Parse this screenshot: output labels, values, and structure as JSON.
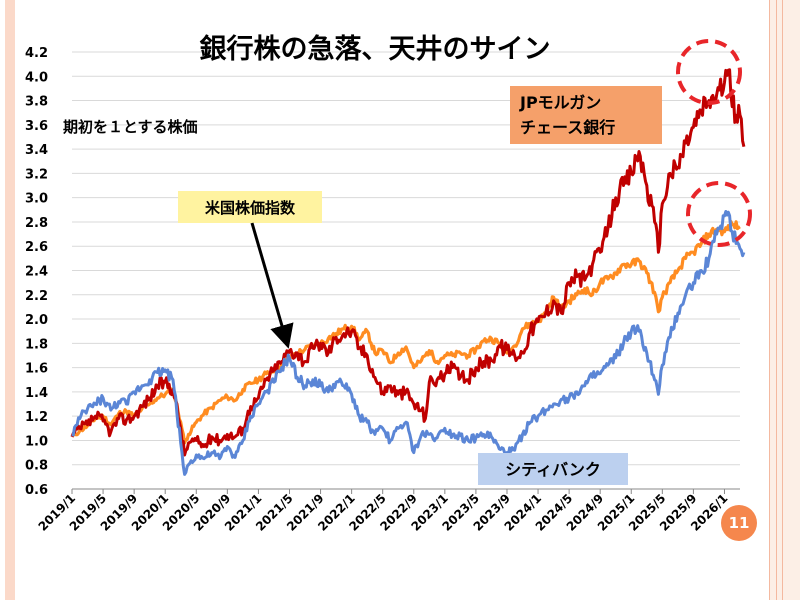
{
  "page_number": "11",
  "colors": {
    "jpm": "#c00000",
    "citi": "#5b86d6",
    "index": "#ff8c21",
    "label_orange_bg": "#f5a06a",
    "label_yellow_bg": "#fff3a0",
    "label_blue_bg": "#bcd0ef",
    "circle": "#e8262a"
  },
  "annotations": {
    "top_left_note": "期初を１とする株価",
    "index_label": "米国株価指数",
    "jpm_label_line1": "JPモルガン",
    "jpm_label_line2": "チェース銀行",
    "citi_label": "シティバンク"
  },
  "chart_data": {
    "type": "line",
    "title": "銀行株の急落、天井のサイン",
    "ylabel": "期初を１とする株価",
    "xlabel": "",
    "ylim": [
      0.6,
      4.2
    ],
    "yticks": [
      "0.6",
      "0.8",
      "1.0",
      "1.2",
      "1.4",
      "1.6",
      "1.8",
      "2.0",
      "2.2",
      "2.4",
      "2.6",
      "2.8",
      "3.0",
      "3.2",
      "3.4",
      "3.6",
      "3.8",
      "4.0",
      "4.2"
    ],
    "xrange": [
      0,
      86
    ],
    "xticks": [
      {
        "m": 0,
        "label": "2019/1"
      },
      {
        "m": 4,
        "label": "2019/5"
      },
      {
        "m": 8,
        "label": "2019/9"
      },
      {
        "m": 12,
        "label": "2020/1"
      },
      {
        "m": 16,
        "label": "2020/5"
      },
      {
        "m": 20,
        "label": "2020/9"
      },
      {
        "m": 24,
        "label": "2021/1"
      },
      {
        "m": 28,
        "label": "2021/5"
      },
      {
        "m": 32,
        "label": "2021/9"
      },
      {
        "m": 36,
        "label": "2022/1"
      },
      {
        "m": 40,
        "label": "2022/5"
      },
      {
        "m": 44,
        "label": "2022/9"
      },
      {
        "m": 48,
        "label": "2023/1"
      },
      {
        "m": 52,
        "label": "2023/5"
      },
      {
        "m": 56,
        "label": "2023/9"
      },
      {
        "m": 60,
        "label": "2024/1"
      },
      {
        "m": 64,
        "label": "2024/5"
      },
      {
        "m": 68,
        "label": "2024/9"
      },
      {
        "m": 72,
        "label": "2025/1"
      },
      {
        "m": 76,
        "label": "2025/5"
      },
      {
        "m": 80,
        "label": "2025/9"
      },
      {
        "m": 84,
        "label": "2026/1"
      }
    ],
    "series": [
      {
        "name": "米国株価指数",
        "key": "index",
        "points": [
          [
            0,
            1.03
          ],
          [
            1,
            1.08
          ],
          [
            2,
            1.12
          ],
          [
            3,
            1.18
          ],
          [
            4,
            1.2
          ],
          [
            5,
            1.13
          ],
          [
            6,
            1.22
          ],
          [
            7,
            1.24
          ],
          [
            8,
            1.2
          ],
          [
            9,
            1.26
          ],
          [
            10,
            1.3
          ],
          [
            11,
            1.35
          ],
          [
            12,
            1.38
          ],
          [
            13,
            1.42
          ],
          [
            14,
            1.15
          ],
          [
            14.5,
            0.98
          ],
          [
            15,
            1.05
          ],
          [
            16,
            1.15
          ],
          [
            17,
            1.22
          ],
          [
            18,
            1.27
          ],
          [
            19,
            1.33
          ],
          [
            20,
            1.36
          ],
          [
            21,
            1.33
          ],
          [
            22,
            1.42
          ],
          [
            23,
            1.47
          ],
          [
            24,
            1.5
          ],
          [
            25,
            1.55
          ],
          [
            26,
            1.58
          ],
          [
            27,
            1.62
          ],
          [
            28,
            1.68
          ],
          [
            29,
            1.72
          ],
          [
            30,
            1.75
          ],
          [
            31,
            1.78
          ],
          [
            32,
            1.8
          ],
          [
            33,
            1.84
          ],
          [
            34,
            1.88
          ],
          [
            35,
            1.92
          ],
          [
            36,
            1.94
          ],
          [
            37,
            1.83
          ],
          [
            38,
            1.9
          ],
          [
            39,
            1.72
          ],
          [
            40,
            1.74
          ],
          [
            41,
            1.64
          ],
          [
            42,
            1.72
          ],
          [
            43,
            1.77
          ],
          [
            44,
            1.6
          ],
          [
            45,
            1.66
          ],
          [
            46,
            1.74
          ],
          [
            47,
            1.65
          ],
          [
            48,
            1.7
          ],
          [
            49,
            1.7
          ],
          [
            50,
            1.72
          ],
          [
            51,
            1.7
          ],
          [
            52,
            1.75
          ],
          [
            53,
            1.82
          ],
          [
            54,
            1.84
          ],
          [
            55,
            1.8
          ],
          [
            56,
            1.72
          ],
          [
            57,
            1.78
          ],
          [
            58,
            1.92
          ],
          [
            59,
            1.96
          ],
          [
            60,
            1.98
          ],
          [
            61,
            2.05
          ],
          [
            62,
            2.18
          ],
          [
            63,
            2.08
          ],
          [
            64,
            2.15
          ],
          [
            65,
            2.2
          ],
          [
            66,
            2.25
          ],
          [
            67,
            2.2
          ],
          [
            68,
            2.3
          ],
          [
            69,
            2.33
          ],
          [
            70,
            2.38
          ],
          [
            71,
            2.45
          ],
          [
            72,
            2.45
          ],
          [
            73,
            2.48
          ],
          [
            74,
            2.38
          ],
          [
            75,
            2.22
          ],
          [
            75.5,
            2.06
          ],
          [
            76,
            2.18
          ],
          [
            77,
            2.3
          ],
          [
            78,
            2.4
          ],
          [
            79,
            2.5
          ],
          [
            80,
            2.55
          ],
          [
            81,
            2.62
          ],
          [
            82,
            2.7
          ],
          [
            83,
            2.74
          ],
          [
            84,
            2.72
          ],
          [
            85,
            2.78
          ],
          [
            86,
            2.76
          ]
        ]
      },
      {
        "name": "JPモルガン チェース銀行",
        "key": "jpm",
        "points": [
          [
            0,
            1.03
          ],
          [
            1,
            1.1
          ],
          [
            2,
            1.13
          ],
          [
            3,
            1.2
          ],
          [
            4,
            1.16
          ],
          [
            5,
            1.07
          ],
          [
            6,
            1.18
          ],
          [
            7,
            1.17
          ],
          [
            8,
            1.2
          ],
          [
            9,
            1.28
          ],
          [
            10,
            1.35
          ],
          [
            11,
            1.45
          ],
          [
            12,
            1.48
          ],
          [
            13,
            1.42
          ],
          [
            14,
            1.1
          ],
          [
            14.5,
            0.88
          ],
          [
            15,
            0.98
          ],
          [
            16,
            1.0
          ],
          [
            17,
            0.95
          ],
          [
            18,
            1.03
          ],
          [
            19,
            1.0
          ],
          [
            20,
            1.05
          ],
          [
            21,
            1.03
          ],
          [
            22,
            1.1
          ],
          [
            23,
            1.28
          ],
          [
            24,
            1.35
          ],
          [
            25,
            1.5
          ],
          [
            26,
            1.58
          ],
          [
            27,
            1.65
          ],
          [
            28,
            1.74
          ],
          [
            29,
            1.72
          ],
          [
            30,
            1.65
          ],
          [
            31,
            1.76
          ],
          [
            32,
            1.8
          ],
          [
            33,
            1.72
          ],
          [
            34,
            1.85
          ],
          [
            35,
            1.88
          ],
          [
            36,
            1.9
          ],
          [
            37,
            1.76
          ],
          [
            38,
            1.7
          ],
          [
            39,
            1.52
          ],
          [
            40,
            1.4
          ],
          [
            41,
            1.45
          ],
          [
            42,
            1.38
          ],
          [
            43,
            1.4
          ],
          [
            44,
            1.3
          ],
          [
            45,
            1.25
          ],
          [
            45.5,
            1.18
          ],
          [
            46,
            1.48
          ],
          [
            47,
            1.5
          ],
          [
            48,
            1.55
          ],
          [
            49,
            1.6
          ],
          [
            50,
            1.52
          ],
          [
            51,
            1.5
          ],
          [
            52,
            1.6
          ],
          [
            53,
            1.65
          ],
          [
            54,
            1.66
          ],
          [
            55,
            1.78
          ],
          [
            56,
            1.75
          ],
          [
            57,
            1.7
          ],
          [
            58,
            1.72
          ],
          [
            59,
            1.9
          ],
          [
            60,
            1.98
          ],
          [
            61,
            2.05
          ],
          [
            62,
            2.15
          ],
          [
            63,
            2.05
          ],
          [
            64,
            2.3
          ],
          [
            65,
            2.35
          ],
          [
            66,
            2.32
          ],
          [
            67,
            2.45
          ],
          [
            68,
            2.55
          ],
          [
            69,
            2.75
          ],
          [
            70,
            3.0
          ],
          [
            71,
            3.1
          ],
          [
            72,
            3.2
          ],
          [
            73,
            3.38
          ],
          [
            74,
            3.1
          ],
          [
            75,
            2.8
          ],
          [
            75.5,
            2.55
          ],
          [
            76,
            2.95
          ],
          [
            77,
            3.2
          ],
          [
            78,
            3.25
          ],
          [
            79,
            3.45
          ],
          [
            80,
            3.58
          ],
          [
            81,
            3.72
          ],
          [
            82,
            3.8
          ],
          [
            83,
            3.85
          ],
          [
            84,
            3.95
          ],
          [
            84.5,
            4.05
          ],
          [
            85,
            3.75
          ],
          [
            86,
            3.68
          ],
          [
            86.5,
            3.42
          ]
        ]
      },
      {
        "name": "シティバンク",
        "key": "citi",
        "points": [
          [
            0,
            1.05
          ],
          [
            1,
            1.18
          ],
          [
            2,
            1.26
          ],
          [
            3,
            1.3
          ],
          [
            4,
            1.35
          ],
          [
            5,
            1.25
          ],
          [
            6,
            1.32
          ],
          [
            7,
            1.3
          ],
          [
            8,
            1.4
          ],
          [
            9,
            1.45
          ],
          [
            10,
            1.5
          ],
          [
            11,
            1.56
          ],
          [
            12,
            1.58
          ],
          [
            13,
            1.5
          ],
          [
            14,
            0.98
          ],
          [
            14.5,
            0.72
          ],
          [
            15,
            0.8
          ],
          [
            16,
            0.88
          ],
          [
            17,
            0.85
          ],
          [
            18,
            0.9
          ],
          [
            19,
            0.85
          ],
          [
            20,
            0.95
          ],
          [
            21,
            0.86
          ],
          [
            22,
            1.0
          ],
          [
            23,
            1.2
          ],
          [
            24,
            1.3
          ],
          [
            25,
            1.4
          ],
          [
            26,
            1.48
          ],
          [
            27,
            1.6
          ],
          [
            28,
            1.68
          ],
          [
            29,
            1.52
          ],
          [
            30,
            1.45
          ],
          [
            31,
            1.5
          ],
          [
            32,
            1.45
          ],
          [
            33,
            1.4
          ],
          [
            34,
            1.48
          ],
          [
            35,
            1.45
          ],
          [
            36,
            1.38
          ],
          [
            37,
            1.2
          ],
          [
            38,
            1.15
          ],
          [
            39,
            1.05
          ],
          [
            40,
            1.1
          ],
          [
            41,
            1.0
          ],
          [
            42,
            1.1
          ],
          [
            43,
            1.15
          ],
          [
            44,
            0.9
          ],
          [
            45,
            1.05
          ],
          [
            46,
            1.05
          ],
          [
            47,
            1.02
          ],
          [
            48,
            1.1
          ],
          [
            49,
            1.05
          ],
          [
            50,
            1.04
          ],
          [
            51,
            1.0
          ],
          [
            52,
            1.02
          ],
          [
            53,
            1.05
          ],
          [
            54,
            1.03
          ],
          [
            55,
            0.93
          ],
          [
            56,
            0.9
          ],
          [
            57,
            0.92
          ],
          [
            58,
            1.05
          ],
          [
            59,
            1.15
          ],
          [
            60,
            1.2
          ],
          [
            61,
            1.25
          ],
          [
            62,
            1.3
          ],
          [
            63,
            1.34
          ],
          [
            64,
            1.35
          ],
          [
            65,
            1.4
          ],
          [
            66,
            1.45
          ],
          [
            67,
            1.52
          ],
          [
            68,
            1.55
          ],
          [
            69,
            1.62
          ],
          [
            70,
            1.68
          ],
          [
            71,
            1.8
          ],
          [
            72,
            1.9
          ],
          [
            73,
            1.9
          ],
          [
            74,
            1.72
          ],
          [
            75,
            1.5
          ],
          [
            75.5,
            1.38
          ],
          [
            76,
            1.62
          ],
          [
            77,
            1.85
          ],
          [
            78,
            2.05
          ],
          [
            79,
            2.2
          ],
          [
            80,
            2.3
          ],
          [
            81,
            2.4
          ],
          [
            82,
            2.5
          ],
          [
            83,
            2.7
          ],
          [
            84,
            2.85
          ],
          [
            84.5,
            2.88
          ],
          [
            85,
            2.72
          ],
          [
            86,
            2.58
          ],
          [
            86.5,
            2.55
          ]
        ]
      }
    ]
  }
}
